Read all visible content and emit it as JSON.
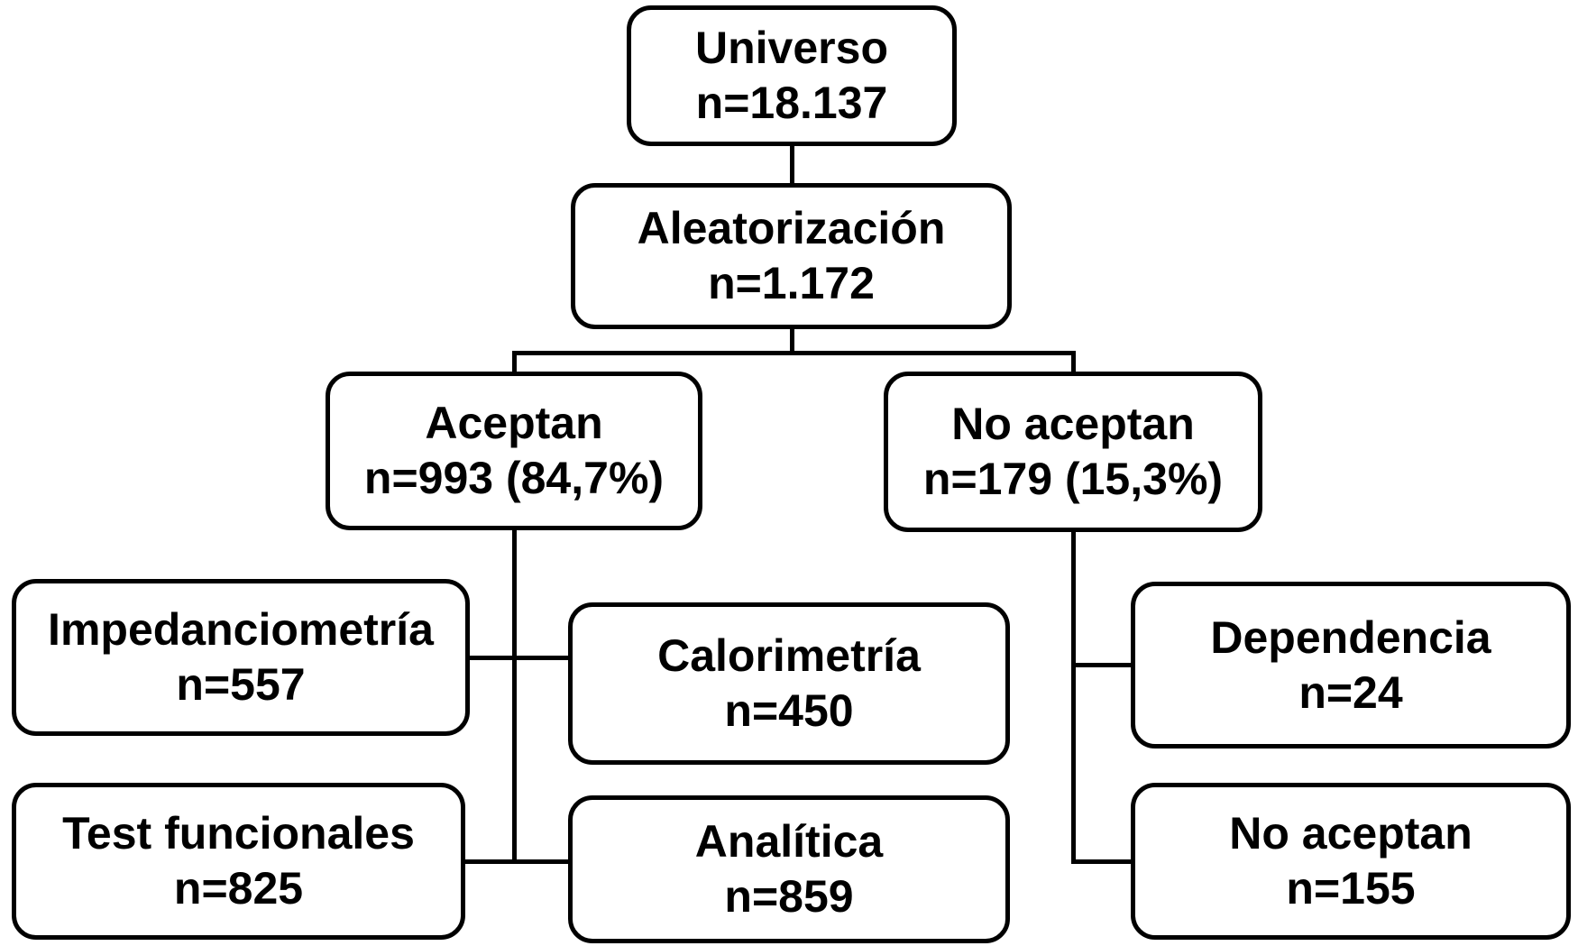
{
  "diagram": {
    "type": "flowchart",
    "background_color": "#ffffff",
    "box_fill_color": "#ffffff",
    "box_border_color": "#000000",
    "text_color": "#000000",
    "nodes": {
      "universo": {
        "title": "Universo",
        "value": "n=18.137"
      },
      "aleatorizacion": {
        "title": "Aleatorización",
        "value": "n=1.172"
      },
      "aceptan": {
        "title": "Aceptan",
        "value": "n=993 (84,7%)"
      },
      "no_aceptan": {
        "title": "No aceptan",
        "value": "n=179 (15,3%)"
      },
      "impedanciometria": {
        "title": "Impedanciometría",
        "value": "n=557"
      },
      "calorimetria": {
        "title": "Calorimetría",
        "value": "n=450"
      },
      "dependencia": {
        "title": "Dependencia",
        "value": "n=24"
      },
      "test_funcionales": {
        "title": "Test funcionales",
        "value": "n=825"
      },
      "analitica": {
        "title": "Analítica",
        "value": "n=859"
      },
      "no_aceptan_final": {
        "title": "No aceptan",
        "value": "n=155"
      }
    },
    "edges": [
      {
        "from": "universo",
        "to": "aleatorizacion"
      },
      {
        "from": "aleatorizacion",
        "to": "aceptan"
      },
      {
        "from": "aleatorizacion",
        "to": "no_aceptan"
      },
      {
        "from": "aceptan",
        "to": "impedanciometria"
      },
      {
        "from": "aceptan",
        "to": "calorimetria"
      },
      {
        "from": "aceptan",
        "to": "test_funcionales"
      },
      {
        "from": "aceptan",
        "to": "analitica"
      },
      {
        "from": "no_aceptan",
        "to": "dependencia"
      },
      {
        "from": "no_aceptan",
        "to": "no_aceptan_final"
      }
    ]
  }
}
